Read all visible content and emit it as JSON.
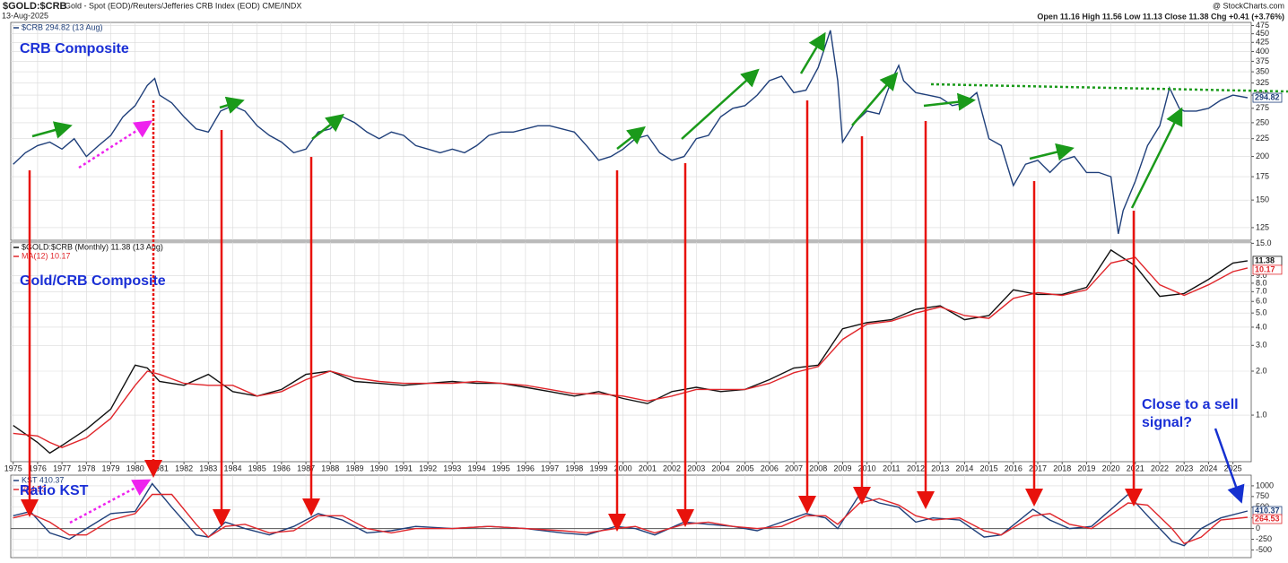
{
  "header": {
    "symbol": "$GOLD:$CRB",
    "description": "Gold - Spot (EOD)/Reuters/Jefferies CRB Index (EOD)  CME/INDX",
    "date": "13-Aug-2025",
    "source": "@ StockCharts.com",
    "quote": "Open 11.16  High 11.56  Low 11.13  Close 11.38  Chg +0.41 (+3.76%)"
  },
  "chart_data": [
    {
      "type": "line",
      "annotation": "CRB Composite",
      "log_scale": true,
      "grid": true,
      "xlim": [
        1974.9,
        2025.75
      ],
      "ylim": [
        115,
        485
      ],
      "yticks": [
        125,
        150,
        175,
        200,
        225,
        250,
        275,
        300,
        325,
        350,
        375,
        400,
        425,
        450,
        475
      ],
      "x": [
        1975,
        1975.5,
        1976,
        1976.5,
        1977,
        1977.5,
        1978,
        1978.5,
        1979,
        1979.5,
        1980,
        1980.5,
        1980.8,
        1981,
        1981.5,
        1982,
        1982.5,
        1983,
        1983.5,
        1984,
        1984.5,
        1985,
        1985.5,
        1986,
        1986.5,
        1987,
        1987.5,
        1988,
        1988.5,
        1989,
        1989.5,
        1990,
        1990.5,
        1991,
        1991.5,
        1992,
        1992.5,
        1993,
        1993.5,
        1994,
        1994.5,
        1995,
        1995.5,
        1996,
        1996.5,
        1997,
        1997.5,
        1998,
        1998.5,
        1999,
        1999.5,
        2000,
        2000.5,
        2001,
        2001.5,
        2002,
        2002.5,
        2003,
        2003.5,
        2004,
        2004.5,
        2005,
        2005.5,
        2006,
        2006.5,
        2007,
        2007.5,
        2008,
        2008.5,
        2008.8,
        2009,
        2009.5,
        2010,
        2010.5,
        2011,
        2011.3,
        2011.5,
        2012,
        2012.5,
        2013,
        2013.5,
        2014,
        2014.5,
        2015,
        2015.5,
        2016,
        2016.5,
        2017,
        2017.5,
        2018,
        2018.5,
        2019,
        2019.5,
        2020,
        2020.3,
        2020.5,
        2021,
        2021.5,
        2022,
        2022.4,
        2022.8,
        2023,
        2023.5,
        2024,
        2024.5,
        2025,
        2025.6
      ],
      "series": [
        {
          "name": "$CRB 294.82 (13 Aug)",
          "color": "#1f3f7a",
          "values": [
            190,
            205,
            215,
            220,
            210,
            225,
            200,
            215,
            230,
            260,
            280,
            320,
            335,
            300,
            285,
            260,
            240,
            235,
            270,
            280,
            270,
            245,
            230,
            220,
            205,
            210,
            235,
            240,
            260,
            250,
            235,
            225,
            235,
            230,
            215,
            210,
            205,
            210,
            205,
            215,
            230,
            235,
            235,
            240,
            245,
            245,
            240,
            235,
            215,
            195,
            200,
            210,
            225,
            230,
            205,
            195,
            200,
            225,
            230,
            260,
            275,
            280,
            300,
            330,
            340,
            305,
            310,
            360,
            460,
            330,
            220,
            250,
            270,
            265,
            330,
            365,
            330,
            305,
            300,
            295,
            280,
            285,
            305,
            225,
            215,
            165,
            190,
            195,
            180,
            195,
            200,
            180,
            180,
            175,
            120,
            140,
            170,
            215,
            245,
            315,
            275,
            270,
            270,
            275,
            290,
            300,
            294.82
          ]
        }
      ]
    },
    {
      "type": "line",
      "annotation": "Gold/CRB Composite",
      "log_scale": true,
      "grid": true,
      "xlim": [
        1974.9,
        2025.75
      ],
      "ylim": [
        0.48,
        15.3
      ],
      "xticks": [
        1975,
        1976,
        1977,
        1978,
        1979,
        1980,
        1981,
        1982,
        1983,
        1984,
        1985,
        1986,
        1987,
        1988,
        1989,
        1990,
        1991,
        1992,
        1993,
        1994,
        1995,
        1996,
        1997,
        1998,
        1999,
        2000,
        2001,
        2002,
        2003,
        2004,
        2005,
        2006,
        2007,
        2008,
        2009,
        2010,
        2011,
        2012,
        2013,
        2014,
        2015,
        2016,
        2017,
        2018,
        2019,
        2020,
        2021,
        2022,
        2023,
        2024,
        2025
      ],
      "yticks": [
        {
          "value": 1,
          "label": "1.0"
        },
        {
          "value": 2,
          "label": "2.0"
        },
        {
          "value": 3,
          "label": "3.0"
        },
        {
          "value": 4,
          "label": "4.0"
        },
        {
          "value": 5,
          "label": "5.0"
        },
        {
          "value": 6,
          "label": "6.0"
        },
        {
          "value": 7,
          "label": "7.0"
        },
        {
          "value": 8,
          "label": "8.0"
        },
        {
          "value": 9,
          "label": "9.0"
        },
        {
          "value": 15,
          "label": "15.0"
        }
      ],
      "x": [
        1975,
        1976,
        1976.5,
        1977,
        1978,
        1979,
        1980,
        1980.5,
        1981,
        1982,
        1983,
        1984,
        1985,
        1986,
        1987,
        1988,
        1989,
        1990,
        1991,
        1992,
        1993,
        1994,
        1995,
        1996,
        1997,
        1998,
        1999,
        2000,
        2001,
        2002,
        2003,
        2004,
        2005,
        2006,
        2007,
        2008,
        2009,
        2010,
        2011,
        2012,
        2013,
        2014,
        2015,
        2016,
        2017,
        2018,
        2019,
        2020,
        2021,
        2022,
        2023,
        2024,
        2025,
        2025.6
      ],
      "series": [
        {
          "name": "$GOLD:$CRB (Monthly) 11.38 (13 Aug)",
          "color": "#111111",
          "values": [
            0.85,
            0.65,
            0.55,
            0.62,
            0.8,
            1.1,
            2.2,
            2.1,
            1.7,
            1.6,
            1.9,
            1.45,
            1.35,
            1.5,
            1.9,
            2.0,
            1.7,
            1.65,
            1.6,
            1.65,
            1.7,
            1.65,
            1.65,
            1.55,
            1.45,
            1.35,
            1.45,
            1.3,
            1.2,
            1.45,
            1.55,
            1.45,
            1.5,
            1.75,
            2.1,
            2.2,
            3.9,
            4.3,
            4.5,
            5.3,
            5.6,
            4.5,
            4.8,
            7.2,
            6.7,
            6.7,
            7.5,
            13.5,
            10.5,
            6.5,
            6.8,
            8.5,
            11.0,
            11.38
          ]
        },
        {
          "name": "MA(12) 10.17",
          "color": "#e0262b",
          "values": [
            0.75,
            0.72,
            0.65,
            0.6,
            0.7,
            0.95,
            1.6,
            2.0,
            1.9,
            1.65,
            1.6,
            1.6,
            1.35,
            1.45,
            1.75,
            2.0,
            1.8,
            1.7,
            1.65,
            1.65,
            1.65,
            1.7,
            1.65,
            1.6,
            1.5,
            1.4,
            1.4,
            1.35,
            1.25,
            1.35,
            1.5,
            1.5,
            1.5,
            1.65,
            1.95,
            2.15,
            3.3,
            4.2,
            4.4,
            5.0,
            5.5,
            4.8,
            4.6,
            6.3,
            6.9,
            6.6,
            7.2,
            11.0,
            12.0,
            7.8,
            6.6,
            7.8,
            9.6,
            10.17
          ]
        }
      ]
    },
    {
      "type": "line",
      "annotation": "Ratio KST",
      "side_note": [
        "Close to a sell",
        "signal?"
      ],
      "log_scale": false,
      "grid": true,
      "xlim": [
        1974.9,
        2025.75
      ],
      "ylim": [
        -680,
        1250
      ],
      "yticks": [
        -500,
        -250,
        0,
        250,
        500,
        750,
        1000
      ],
      "x": [
        1975,
        1975.7,
        1976.5,
        1977.3,
        1978,
        1979,
        1980,
        1980.7,
        1981.5,
        1982.5,
        1983,
        1983.7,
        1984.5,
        1985.5,
        1986.5,
        1987.5,
        1988.5,
        1989.5,
        1990.5,
        1991.5,
        1993,
        1994.5,
        1996,
        1997.5,
        1998.5,
        1999.7,
        2000.5,
        2001.3,
        2002.5,
        2003.5,
        2004.5,
        2005.5,
        2006.5,
        2007.5,
        2008.3,
        2008.8,
        2009.7,
        2010.5,
        2011.3,
        2012,
        2012.7,
        2013.8,
        2014.8,
        2015.5,
        2016.8,
        2017.5,
        2018.3,
        2019.2,
        2020.7,
        2021.5,
        2022.5,
        2023,
        2023.7,
        2024.5,
        2025.6
      ],
      "series": [
        {
          "name": "KST 410.37",
          "color": "#1f3f7a",
          "values": [
            300,
            400,
            -100,
            -250,
            0,
            350,
            400,
            1050,
            500,
            -150,
            -200,
            150,
            0,
            -150,
            50,
            350,
            200,
            -100,
            -50,
            50,
            0,
            50,
            0,
            -100,
            -150,
            50,
            0,
            -150,
            150,
            100,
            50,
            -50,
            150,
            350,
            250,
            0,
            800,
            600,
            500,
            150,
            250,
            200,
            -200,
            -150,
            450,
            200,
            0,
            50,
            800,
            300,
            -300,
            -400,
            0,
            250,
            410.37
          ]
        },
        {
          "name": "264.53",
          "color": "#e0262b",
          "values": [
            250,
            350,
            150,
            -150,
            -150,
            200,
            350,
            800,
            800,
            100,
            -200,
            50,
            100,
            -100,
            -50,
            300,
            300,
            0,
            -100,
            0,
            0,
            50,
            0,
            -50,
            -100,
            0,
            50,
            -100,
            100,
            150,
            50,
            0,
            50,
            300,
            300,
            100,
            600,
            700,
            550,
            300,
            200,
            250,
            -50,
            -150,
            300,
            350,
            100,
            0,
            600,
            550,
            0,
            -350,
            -200,
            200,
            264.53
          ]
        }
      ]
    }
  ]
}
